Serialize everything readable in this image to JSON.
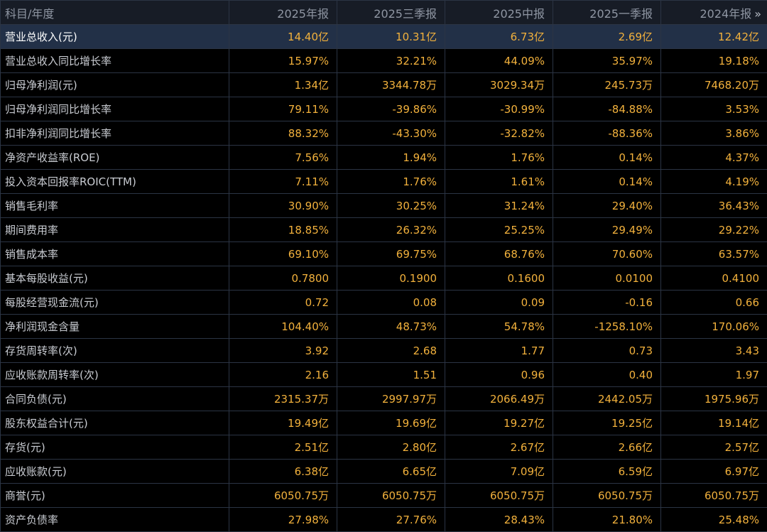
{
  "header": {
    "label_column": "科目/年度",
    "periods": [
      "2025年报",
      "2025三季报",
      "2025中报",
      "2025一季报",
      "2024年报"
    ],
    "next_icon": "double-chevron-right-icon",
    "next_glyph": "»"
  },
  "colors": {
    "value": "#f2b13c",
    "label": "#c9ccd2",
    "header_text": "#8f96a3",
    "header_bg": "#171c26",
    "selected_row_bg": "#223047",
    "border": "#2b3444"
  },
  "rows": [
    {
      "label": "营业总收入(元)",
      "values": [
        "14.40亿",
        "10.31亿",
        "6.73亿",
        "2.69亿",
        "12.42亿"
      ],
      "selected": true
    },
    {
      "label": "营业总收入同比增长率",
      "values": [
        "15.97%",
        "32.21%",
        "44.09%",
        "35.97%",
        "19.18%"
      ]
    },
    {
      "label": "归母净利润(元)",
      "values": [
        "1.34亿",
        "3344.78万",
        "3029.34万",
        "245.73万",
        "7468.20万"
      ]
    },
    {
      "label": "归母净利润同比增长率",
      "values": [
        "79.11%",
        "-39.86%",
        "-30.99%",
        "-84.88%",
        "3.53%"
      ]
    },
    {
      "label": "扣非净利润同比增长率",
      "values": [
        "88.32%",
        "-43.30%",
        "-32.82%",
        "-88.36%",
        "3.86%"
      ]
    },
    {
      "label": "净资产收益率(ROE)",
      "values": [
        "7.56%",
        "1.94%",
        "1.76%",
        "0.14%",
        "4.37%"
      ]
    },
    {
      "label": "投入资本回报率ROIC(TTM)",
      "values": [
        "7.11%",
        "1.76%",
        "1.61%",
        "0.14%",
        "4.19%"
      ]
    },
    {
      "label": "销售毛利率",
      "values": [
        "30.90%",
        "30.25%",
        "31.24%",
        "29.40%",
        "36.43%"
      ]
    },
    {
      "label": "期间费用率",
      "values": [
        "18.85%",
        "26.32%",
        "25.25%",
        "29.49%",
        "29.22%"
      ]
    },
    {
      "label": "销售成本率",
      "values": [
        "69.10%",
        "69.75%",
        "68.76%",
        "70.60%",
        "63.57%"
      ]
    },
    {
      "label": "基本每股收益(元)",
      "values": [
        "0.7800",
        "0.1900",
        "0.1600",
        "0.0100",
        "0.4100"
      ]
    },
    {
      "label": "每股经营现金流(元)",
      "values": [
        "0.72",
        "0.08",
        "0.09",
        "-0.16",
        "0.66"
      ]
    },
    {
      "label": "净利润现金含量",
      "values": [
        "104.40%",
        "48.73%",
        "54.78%",
        "-1258.10%",
        "170.06%"
      ]
    },
    {
      "label": "存货周转率(次)",
      "values": [
        "3.92",
        "2.68",
        "1.77",
        "0.73",
        "3.43"
      ]
    },
    {
      "label": "应收账款周转率(次)",
      "values": [
        "2.16",
        "1.51",
        "0.96",
        "0.40",
        "1.97"
      ]
    },
    {
      "label": "合同负债(元)",
      "values": [
        "2315.37万",
        "2997.97万",
        "2066.49万",
        "2442.05万",
        "1975.96万"
      ]
    },
    {
      "label": "股东权益合计(元)",
      "values": [
        "19.49亿",
        "19.69亿",
        "19.27亿",
        "19.25亿",
        "19.14亿"
      ]
    },
    {
      "label": "存货(元)",
      "values": [
        "2.51亿",
        "2.80亿",
        "2.67亿",
        "2.66亿",
        "2.57亿"
      ]
    },
    {
      "label": "应收账款(元)",
      "values": [
        "6.38亿",
        "6.65亿",
        "7.09亿",
        "6.59亿",
        "6.97亿"
      ]
    },
    {
      "label": "商誉(元)",
      "values": [
        "6050.75万",
        "6050.75万",
        "6050.75万",
        "6050.75万",
        "6050.75万"
      ]
    },
    {
      "label": "资产负债率",
      "values": [
        "27.98%",
        "27.76%",
        "28.43%",
        "21.80%",
        "25.48%"
      ]
    }
  ]
}
